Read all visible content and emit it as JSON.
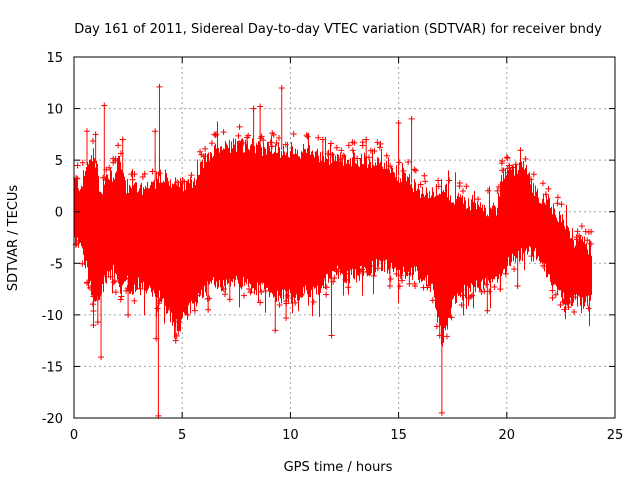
{
  "chart_data": {
    "type": "scatter",
    "title": "Day 161 of 2011, Sidereal Day-to-day VTEC variation (SDTVAR) for receiver bndy",
    "xlabel": "GPS time / hours",
    "ylabel": "SDTVAR / TECUs",
    "xlim": [
      0,
      25
    ],
    "ylim": [
      -20,
      15
    ],
    "xticks": [
      0,
      5,
      10,
      15,
      20,
      25
    ],
    "yticks": [
      -20,
      -15,
      -10,
      -5,
      0,
      5,
      10,
      15
    ],
    "grid": true,
    "color": "#ff0000",
    "marker": "+",
    "series": [
      {
        "name": "SDTVAR",
        "envelope": {
          "x": [
            0.0,
            0.3,
            0.6,
            0.9,
            1.2,
            1.5,
            1.8,
            2.1,
            2.4,
            2.7,
            3.0,
            3.3,
            3.6,
            3.9,
            4.2,
            4.5,
            4.8,
            5.1,
            5.4,
            5.7,
            6.0,
            6.5,
            7.0,
            7.5,
            8.0,
            8.5,
            9.0,
            9.5,
            10.0,
            10.5,
            11.0,
            11.5,
            12.0,
            12.5,
            13.0,
            13.5,
            14.0,
            14.5,
            15.0,
            15.5,
            16.0,
            16.5,
            17.0,
            17.5,
            18.0,
            18.5,
            19.0,
            19.5,
            19.8,
            20.0,
            20.3,
            20.6,
            20.9,
            21.2,
            21.5,
            21.8,
            22.1,
            22.4,
            22.7,
            23.0,
            23.3,
            23.6,
            23.9
          ],
          "upper": [
            3.0,
            2.5,
            4.5,
            6.0,
            2.0,
            3.5,
            3.5,
            5.0,
            2.5,
            2.0,
            2.5,
            2.0,
            2.5,
            3.5,
            3.5,
            3.0,
            2.5,
            2.5,
            3.0,
            3.5,
            5.0,
            5.8,
            6.2,
            6.5,
            6.5,
            6.3,
            6.0,
            6.0,
            6.0,
            5.8,
            5.8,
            5.5,
            5.0,
            5.0,
            5.0,
            5.0,
            5.0,
            4.5,
            3.5,
            3.0,
            2.0,
            1.5,
            2.5,
            1.5,
            1.0,
            0.5,
            0.3,
            0.3,
            3.5,
            4.0,
            4.0,
            4.2,
            4.5,
            2.0,
            1.5,
            1.5,
            0.5,
            -0.5,
            -1.5,
            -2.5,
            -3.0,
            -3.2,
            -3.5
          ],
          "lower": [
            -2.0,
            -2.5,
            -5.0,
            -8.0,
            -7.0,
            -5.5,
            -5.0,
            -7.0,
            -6.0,
            -7.0,
            -6.0,
            -6.5,
            -7.0,
            -7.5,
            -8.5,
            -9.5,
            -10.5,
            -9.5,
            -8.5,
            -7.5,
            -7.0,
            -6.0,
            -6.5,
            -6.0,
            -6.5,
            -6.8,
            -7.0,
            -7.5,
            -7.5,
            -7.0,
            -7.0,
            -6.5,
            -5.0,
            -5.5,
            -5.5,
            -5.0,
            -4.5,
            -4.5,
            -5.5,
            -5.0,
            -5.5,
            -6.5,
            -12.0,
            -8.0,
            -7.0,
            -6.5,
            -6.0,
            -6.0,
            -5.5,
            -4.0,
            -4.0,
            -3.5,
            -3.0,
            -3.5,
            -3.5,
            -5.0,
            -6.5,
            -7.5,
            -7.8,
            -8.0,
            -8.0,
            -8.0,
            -8.0
          ]
        },
        "outliers": [
          [
            1.4,
            10.3
          ],
          [
            3.95,
            12.1
          ],
          [
            9.6,
            12.0
          ],
          [
            8.6,
            10.2
          ],
          [
            8.3,
            10.0
          ],
          [
            3.75,
            7.8
          ],
          [
            2.25,
            7.0
          ],
          [
            1.0,
            7.5
          ],
          [
            0.6,
            7.8
          ],
          [
            13.5,
            7.0
          ],
          [
            15.0,
            8.6
          ],
          [
            15.6,
            9.0
          ],
          [
            11.5,
            7.0
          ],
          [
            8.0,
            7.2
          ],
          [
            1.25,
            -14.1
          ],
          [
            3.9,
            -19.8
          ],
          [
            17.0,
            -19.5
          ],
          [
            3.8,
            -12.3
          ],
          [
            4.7,
            -12.5
          ],
          [
            11.9,
            -12.0
          ],
          [
            9.3,
            -11.5
          ],
          [
            9.8,
            -10.3
          ],
          [
            6.2,
            -9.5
          ],
          [
            2.5,
            -10.0
          ],
          [
            0.9,
            -11.0
          ],
          [
            1.1,
            -10.7
          ],
          [
            19.1,
            -9.6
          ],
          [
            16.9,
            -12.0
          ],
          [
            14.6,
            -7.2
          ],
          [
            15.5,
            -7.0
          ],
          [
            20.5,
            -7.2
          ],
          [
            19.7,
            -7.5
          ],
          [
            7.2,
            -8.5
          ],
          [
            10.5,
            -8.0
          ]
        ]
      }
    ]
  }
}
